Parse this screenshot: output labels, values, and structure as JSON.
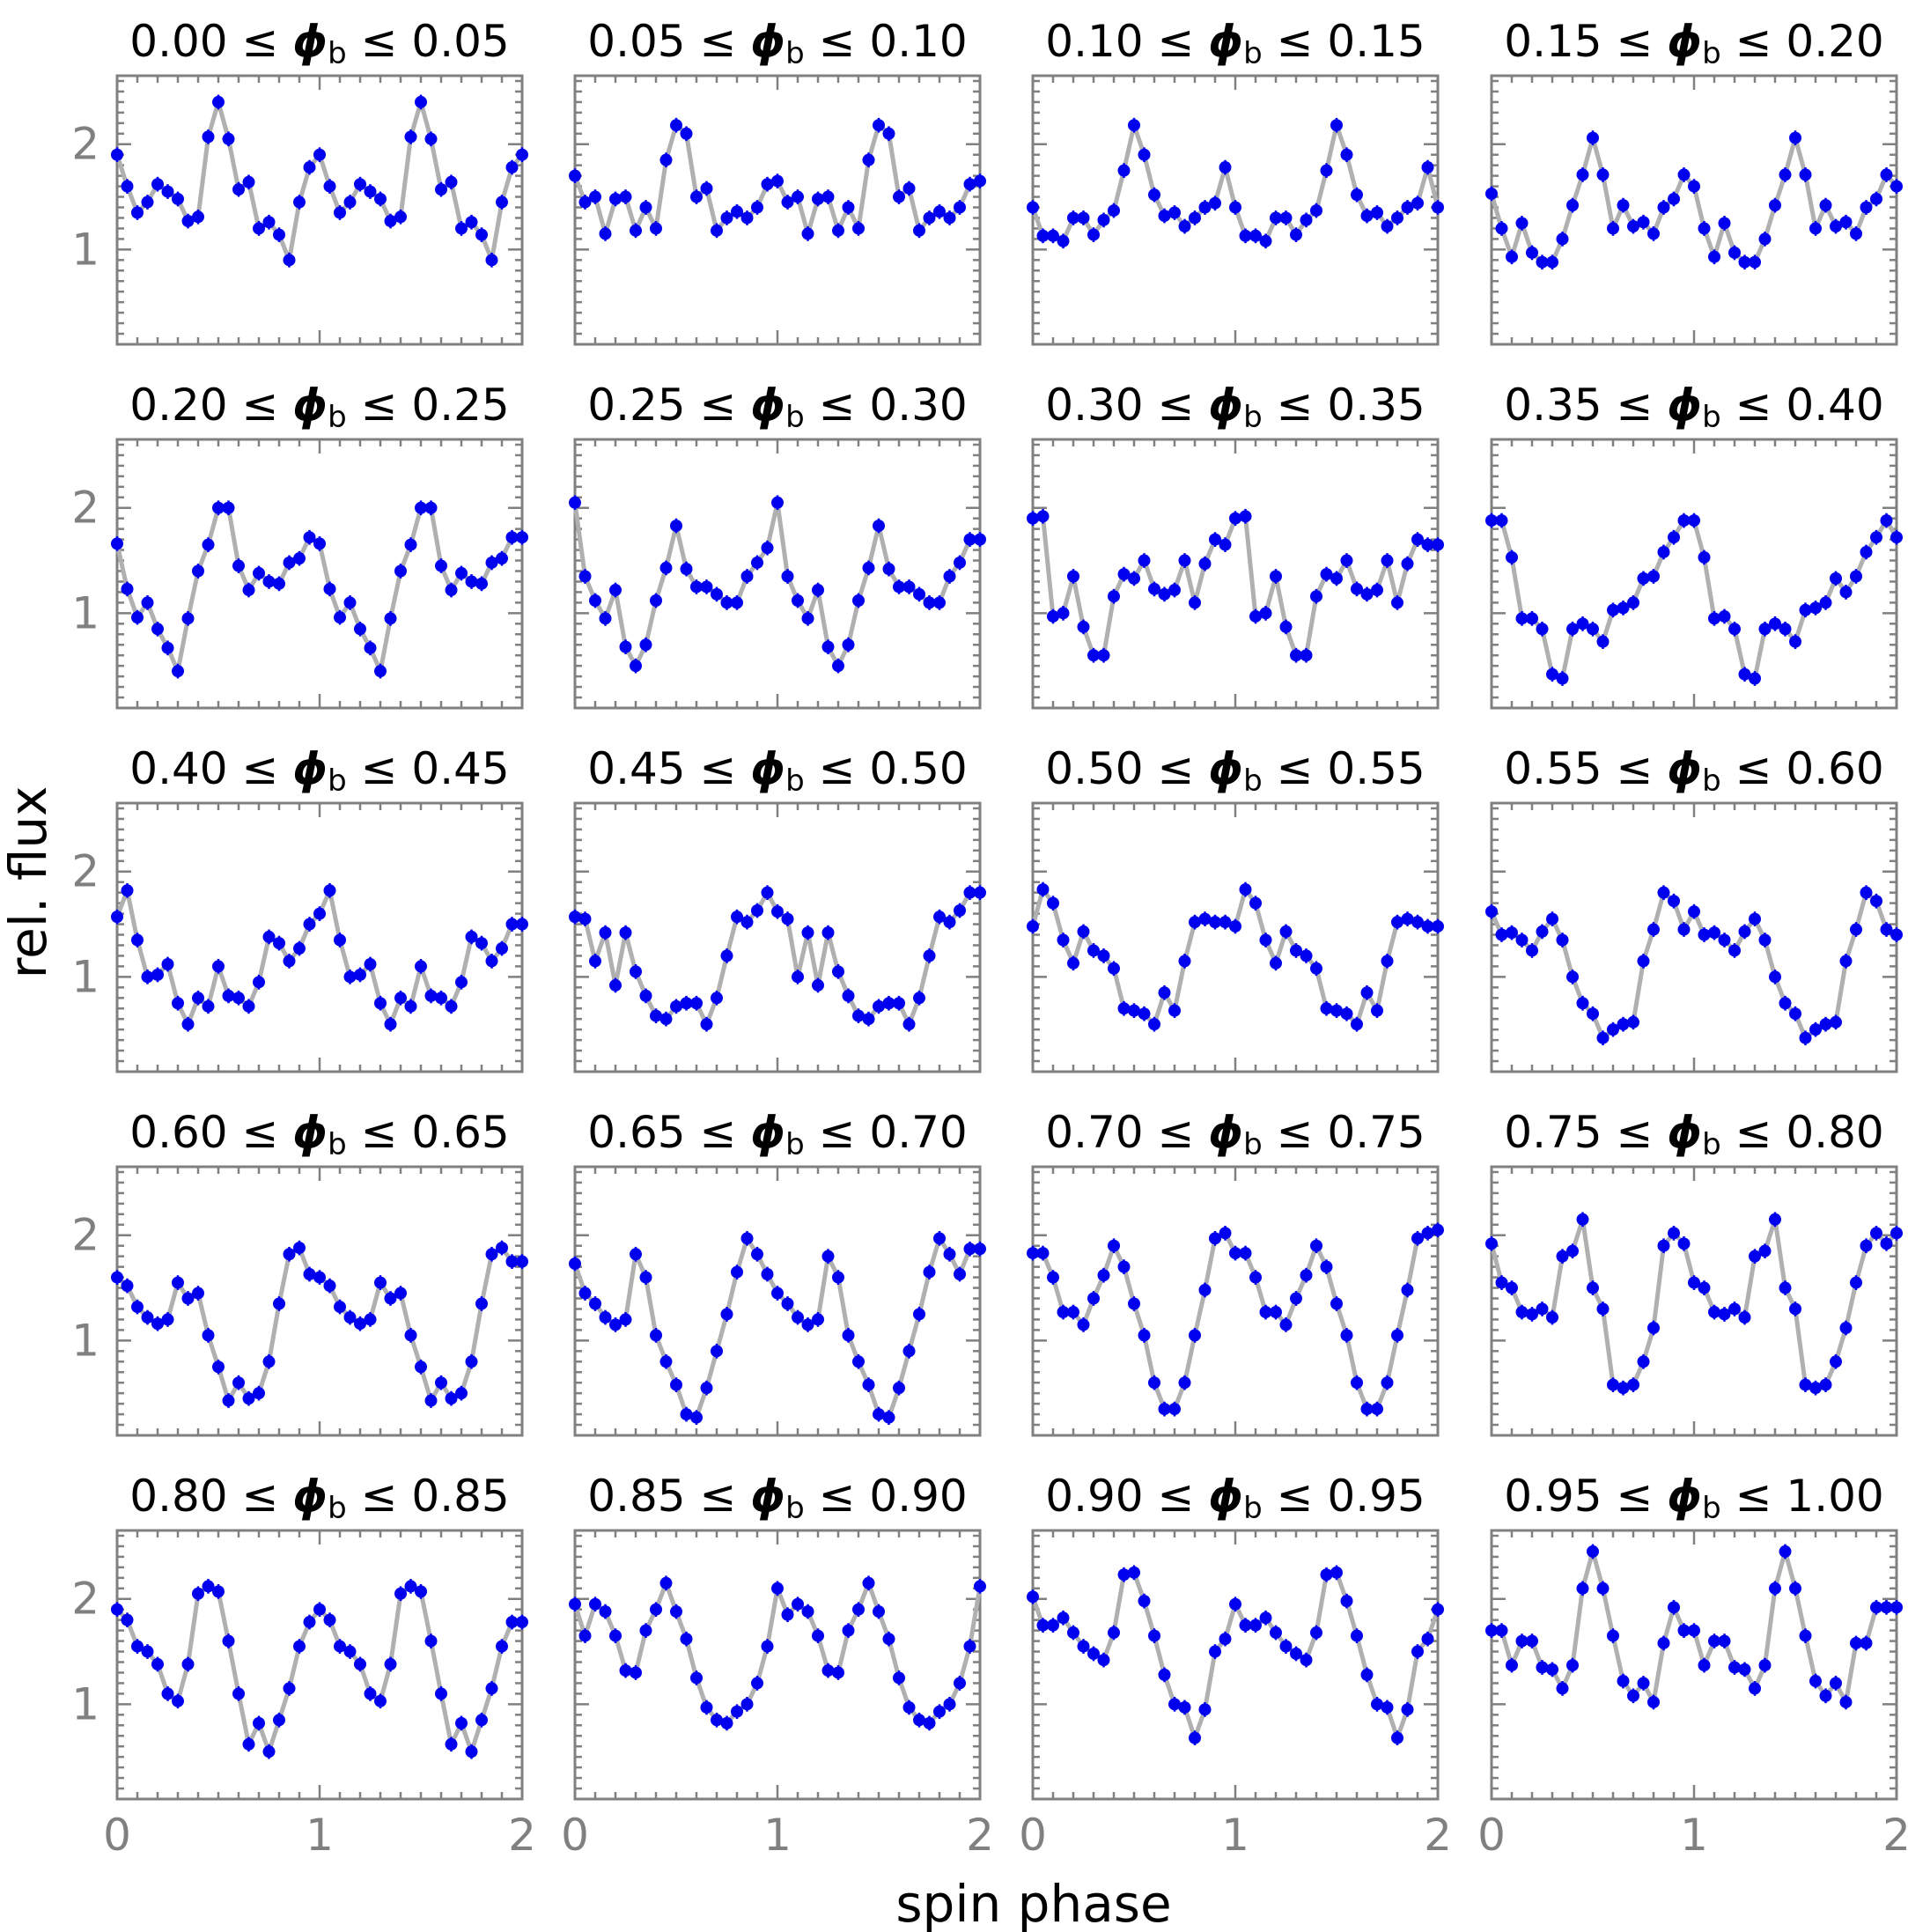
{
  "figure": {
    "xlabel": "spin phase",
    "ylabel": "rel. flux"
  },
  "style": {
    "point_color": "#0000ee",
    "line_color": "#b0b0b0",
    "axis_color": "#808080"
  },
  "chart_data": {
    "type": "line",
    "layout": "5x4 grid of panels",
    "x_ticks": [
      0,
      1,
      2
    ],
    "y_ticks": [
      1,
      2
    ],
    "xlim": [
      0,
      2
    ],
    "ylim": [
      0.1,
      2.65
    ],
    "x": [
      0.0,
      0.05,
      0.1,
      0.15,
      0.2,
      0.25,
      0.3,
      0.35,
      0.4,
      0.45,
      0.5,
      0.55,
      0.6,
      0.65,
      0.7,
      0.75,
      0.8,
      0.85,
      0.9,
      0.95,
      1.0,
      1.05,
      1.1,
      1.15,
      1.2,
      1.25,
      1.3,
      1.35,
      1.4,
      1.45,
      1.5,
      1.55,
      1.6,
      1.65,
      1.7,
      1.75,
      1.8,
      1.85,
      1.9,
      1.95,
      2.0
    ],
    "y_error": 0.07,
    "panels": [
      {
        "title": "0.00 ≤ ϕb ≤ 0.05",
        "title_pre": "0.00 ≤ ",
        "title_post": " ≤ 0.05",
        "y": [
          1.9,
          1.6,
          1.35,
          1.45,
          1.62,
          1.55,
          1.48,
          1.27,
          1.31,
          2.07,
          2.4,
          2.05,
          1.57,
          1.64,
          1.2,
          1.26,
          1.14,
          0.9,
          1.45,
          1.78,
          1.9,
          1.6,
          1.35,
          1.45,
          1.62,
          1.55,
          1.48,
          1.27,
          1.31,
          2.07,
          2.4,
          2.05,
          1.57,
          1.64,
          1.2,
          1.26,
          1.14,
          0.9,
          1.45,
          1.78,
          1.9
        ]
      },
      {
        "title": "0.05 ≤ ϕb ≤ 0.10",
        "title_pre": "0.05 ≤ ",
        "title_post": " ≤ 0.10",
        "y": [
          1.7,
          1.45,
          1.5,
          1.15,
          1.48,
          1.5,
          1.18,
          1.4,
          1.2,
          1.85,
          2.18,
          2.1,
          1.5,
          1.58,
          1.18,
          1.3,
          1.36,
          1.3,
          1.4,
          1.62,
          1.65,
          1.45,
          1.5,
          1.15,
          1.48,
          1.5,
          1.18,
          1.4,
          1.2,
          1.85,
          2.18,
          2.1,
          1.5,
          1.58,
          1.18,
          1.3,
          1.36,
          1.3,
          1.4,
          1.62,
          1.65
        ]
      },
      {
        "title": "0.10 ≤ ϕb ≤ 0.15",
        "title_pre": "0.10 ≤ ",
        "title_post": " ≤ 0.15",
        "y": [
          1.4,
          1.13,
          1.13,
          1.08,
          1.3,
          1.3,
          1.14,
          1.28,
          1.37,
          1.75,
          2.18,
          1.9,
          1.52,
          1.32,
          1.35,
          1.22,
          1.3,
          1.4,
          1.44,
          1.78,
          1.4,
          1.13,
          1.13,
          1.08,
          1.3,
          1.3,
          1.14,
          1.28,
          1.37,
          1.75,
          2.18,
          1.9,
          1.52,
          1.32,
          1.35,
          1.22,
          1.3,
          1.4,
          1.44,
          1.78,
          1.4
        ]
      },
      {
        "title": "0.15 ≤ ϕb ≤ 0.20",
        "title_pre": "0.15 ≤ ",
        "title_post": " ≤ 0.20",
        "y": [
          1.53,
          1.2,
          0.93,
          1.25,
          0.97,
          0.88,
          0.88,
          1.1,
          1.42,
          1.71,
          2.06,
          1.71,
          1.2,
          1.42,
          1.22,
          1.26,
          1.15,
          1.4,
          1.48,
          1.71,
          1.6,
          1.2,
          0.93,
          1.25,
          0.97,
          0.88,
          0.88,
          1.1,
          1.42,
          1.71,
          2.06,
          1.71,
          1.2,
          1.42,
          1.22,
          1.26,
          1.15,
          1.4,
          1.48,
          1.71,
          1.6
        ]
      },
      {
        "title": "0.20 ≤ ϕb ≤ 0.25",
        "title_pre": "0.20 ≤ ",
        "title_post": " ≤ 0.25",
        "y": [
          1.66,
          1.23,
          0.96,
          1.1,
          0.85,
          0.67,
          0.45,
          0.95,
          1.4,
          1.65,
          2.0,
          2.0,
          1.45,
          1.22,
          1.38,
          1.3,
          1.28,
          1.48,
          1.52,
          1.72,
          1.66,
          1.23,
          0.96,
          1.1,
          0.85,
          0.67,
          0.45,
          0.95,
          1.4,
          1.65,
          2.0,
          2.0,
          1.45,
          1.22,
          1.38,
          1.3,
          1.28,
          1.48,
          1.52,
          1.72,
          1.72
        ]
      },
      {
        "title": "0.25 ≤ ϕb ≤ 0.30",
        "title_pre": "0.25 ≤ ",
        "title_post": " ≤ 0.30",
        "y": [
          2.05,
          1.35,
          1.12,
          0.95,
          1.22,
          0.68,
          0.5,
          0.7,
          1.12,
          1.43,
          1.83,
          1.42,
          1.25,
          1.25,
          1.18,
          1.1,
          1.1,
          1.35,
          1.48,
          1.62,
          2.05,
          1.35,
          1.12,
          0.95,
          1.22,
          0.68,
          0.5,
          0.7,
          1.12,
          1.43,
          1.83,
          1.42,
          1.25,
          1.25,
          1.18,
          1.1,
          1.1,
          1.35,
          1.48,
          1.7,
          1.7
        ]
      },
      {
        "title": "0.30 ≤ ϕb ≤ 0.35",
        "title_pre": "0.30 ≤ ",
        "title_post": " ≤ 0.35",
        "y": [
          1.9,
          1.92,
          0.97,
          1.0,
          1.35,
          0.87,
          0.6,
          0.6,
          1.16,
          1.37,
          1.33,
          1.5,
          1.23,
          1.18,
          1.22,
          1.5,
          1.1,
          1.47,
          1.7,
          1.65,
          1.9,
          1.92,
          0.97,
          1.0,
          1.35,
          0.87,
          0.6,
          0.6,
          1.16,
          1.37,
          1.33,
          1.5,
          1.23,
          1.18,
          1.22,
          1.5,
          1.1,
          1.47,
          1.7,
          1.65,
          1.65
        ]
      },
      {
        "title": "0.35 ≤ ϕb ≤ 0.40",
        "title_pre": "0.35 ≤ ",
        "title_post": " ≤ 0.40",
        "y": [
          1.88,
          1.88,
          1.53,
          0.95,
          0.95,
          0.85,
          0.42,
          0.38,
          0.85,
          0.9,
          0.85,
          0.73,
          1.03,
          1.05,
          1.1,
          1.33,
          1.35,
          1.58,
          1.72,
          1.88,
          1.88,
          1.53,
          0.95,
          0.97,
          0.85,
          0.42,
          0.38,
          0.85,
          0.9,
          0.85,
          0.73,
          1.03,
          1.05,
          1.1,
          1.33,
          1.2,
          1.35,
          1.58,
          1.72,
          1.88,
          1.72
        ]
      },
      {
        "title": "0.40 ≤ ϕb ≤ 0.45",
        "title_pre": "0.40 ≤ ",
        "title_post": " ≤ 0.45",
        "y": [
          1.57,
          1.82,
          1.35,
          1.0,
          1.02,
          1.12,
          0.75,
          0.55,
          0.8,
          0.72,
          1.1,
          0.82,
          0.8,
          0.72,
          0.95,
          1.38,
          1.32,
          1.15,
          1.27,
          1.5,
          1.6,
          1.82,
          1.35,
          1.0,
          1.02,
          1.12,
          0.75,
          0.55,
          0.8,
          0.72,
          1.1,
          0.82,
          0.8,
          0.72,
          0.95,
          1.38,
          1.32,
          1.15,
          1.27,
          1.5,
          1.5
        ]
      },
      {
        "title": "0.45 ≤ ϕb ≤ 0.50",
        "title_pre": "0.45 ≤ ",
        "title_post": " ≤ 0.50",
        "y": [
          1.57,
          1.55,
          1.15,
          1.42,
          0.92,
          1.42,
          1.05,
          0.82,
          0.63,
          0.6,
          0.72,
          0.75,
          0.75,
          0.55,
          0.8,
          1.2,
          1.57,
          1.52,
          1.63,
          1.8,
          1.62,
          1.55,
          1.0,
          1.42,
          0.92,
          1.42,
          1.05,
          0.82,
          0.63,
          0.6,
          0.72,
          0.75,
          0.75,
          0.55,
          0.8,
          1.2,
          1.57,
          1.52,
          1.63,
          1.8,
          1.8
        ]
      },
      {
        "title": "0.50 ≤ ϕb ≤ 0.55",
        "title_pre": "0.50 ≤ ",
        "title_post": " ≤ 0.55",
        "y": [
          1.48,
          1.83,
          1.7,
          1.35,
          1.13,
          1.43,
          1.25,
          1.2,
          1.08,
          0.7,
          0.68,
          0.65,
          0.55,
          0.85,
          0.68,
          1.15,
          1.52,
          1.55,
          1.52,
          1.52,
          1.48,
          1.83,
          1.7,
          1.35,
          1.13,
          1.43,
          1.25,
          1.2,
          1.08,
          0.7,
          0.68,
          0.65,
          0.55,
          0.85,
          0.68,
          1.15,
          1.52,
          1.55,
          1.52,
          1.48,
          1.48
        ]
      },
      {
        "title": "0.55 ≤ ϕb ≤ 0.60",
        "title_pre": "0.55 ≤ ",
        "title_post": " ≤ 0.60",
        "y": [
          1.62,
          1.4,
          1.42,
          1.35,
          1.25,
          1.43,
          1.55,
          1.35,
          1.0,
          0.75,
          0.65,
          0.42,
          0.5,
          0.55,
          0.57,
          1.15,
          1.45,
          1.8,
          1.72,
          1.45,
          1.62,
          1.4,
          1.42,
          1.35,
          1.25,
          1.43,
          1.55,
          1.35,
          1.0,
          0.75,
          0.65,
          0.42,
          0.5,
          0.55,
          0.57,
          1.15,
          1.45,
          1.8,
          1.72,
          1.45,
          1.4
        ]
      },
      {
        "title": "0.60 ≤ ϕb ≤ 0.65",
        "title_pre": "0.60 ≤ ",
        "title_post": " ≤ 0.65",
        "y": [
          1.6,
          1.52,
          1.32,
          1.22,
          1.16,
          1.2,
          1.55,
          1.4,
          1.45,
          1.05,
          0.75,
          0.43,
          0.6,
          0.45,
          0.5,
          0.8,
          1.35,
          1.82,
          1.88,
          1.63,
          1.6,
          1.52,
          1.32,
          1.22,
          1.16,
          1.2,
          1.55,
          1.4,
          1.45,
          1.05,
          0.75,
          0.43,
          0.6,
          0.45,
          0.5,
          0.8,
          1.35,
          1.82,
          1.88,
          1.75,
          1.75
        ]
      },
      {
        "title": "0.65 ≤ ϕb ≤ 0.70",
        "title_pre": "0.65 ≤ ",
        "title_post": " ≤ 0.70",
        "y": [
          1.73,
          1.45,
          1.35,
          1.22,
          1.15,
          1.2,
          1.82,
          1.6,
          1.05,
          0.8,
          0.58,
          0.3,
          0.27,
          0.55,
          0.9,
          1.25,
          1.65,
          1.97,
          1.82,
          1.63,
          1.45,
          1.35,
          1.22,
          1.15,
          1.2,
          1.8,
          1.6,
          1.05,
          0.8,
          0.58,
          0.3,
          0.27,
          0.55,
          0.9,
          1.25,
          1.65,
          1.97,
          1.82,
          1.63,
          1.87,
          1.87
        ]
      },
      {
        "title": "0.70 ≤ ϕb ≤ 0.75",
        "title_pre": "0.70 ≤ ",
        "title_post": " ≤ 0.75",
        "y": [
          1.83,
          1.83,
          1.6,
          1.27,
          1.27,
          1.15,
          1.4,
          1.62,
          1.9,
          1.7,
          1.35,
          1.05,
          0.6,
          0.35,
          0.35,
          0.6,
          1.05,
          1.48,
          1.97,
          2.02,
          1.83,
          1.83,
          1.6,
          1.27,
          1.27,
          1.15,
          1.4,
          1.62,
          1.9,
          1.7,
          1.35,
          1.05,
          0.6,
          0.35,
          0.35,
          0.6,
          1.05,
          1.48,
          1.97,
          2.02,
          2.05
        ]
      },
      {
        "title": "0.75 ≤ ϕb ≤ 0.80",
        "title_pre": "0.75 ≤ ",
        "title_post": " ≤ 0.80",
        "y": [
          1.92,
          1.55,
          1.5,
          1.27,
          1.25,
          1.3,
          1.22,
          1.8,
          1.85,
          2.15,
          1.5,
          1.3,
          0.58,
          0.55,
          0.58,
          0.8,
          1.12,
          1.9,
          2.02,
          1.92,
          1.55,
          1.5,
          1.27,
          1.25,
          1.3,
          1.22,
          1.8,
          1.85,
          2.15,
          1.5,
          1.3,
          0.58,
          0.55,
          0.58,
          0.8,
          1.12,
          1.55,
          1.9,
          2.02,
          1.92,
          2.02
        ]
      },
      {
        "title": "0.80 ≤ ϕb ≤ 0.85",
        "title_pre": "0.80 ≤ ",
        "title_post": " ≤ 0.85",
        "y": [
          1.9,
          1.8,
          1.55,
          1.5,
          1.38,
          1.1,
          1.03,
          1.38,
          2.05,
          2.12,
          2.07,
          1.6,
          1.1,
          0.62,
          0.82,
          0.55,
          0.85,
          1.15,
          1.55,
          1.78,
          1.9,
          1.8,
          1.55,
          1.5,
          1.38,
          1.1,
          1.03,
          1.38,
          2.05,
          2.12,
          2.07,
          1.6,
          1.1,
          0.62,
          0.82,
          0.55,
          0.85,
          1.15,
          1.55,
          1.78,
          1.78
        ]
      },
      {
        "title": "0.85 ≤ ϕb ≤ 0.90",
        "title_pre": "0.85 ≤ ",
        "title_post": " ≤ 0.90",
        "y": [
          1.95,
          1.65,
          1.95,
          1.88,
          1.65,
          1.32,
          1.3,
          1.7,
          1.9,
          2.15,
          1.88,
          1.62,
          1.25,
          0.97,
          0.85,
          0.82,
          0.93,
          1.0,
          1.2,
          1.55,
          2.1,
          1.85,
          1.95,
          1.88,
          1.65,
          1.32,
          1.3,
          1.7,
          1.9,
          2.15,
          1.88,
          1.62,
          1.25,
          0.97,
          0.85,
          0.82,
          0.93,
          1.0,
          1.2,
          1.55,
          2.12
        ]
      },
      {
        "title": "0.90 ≤ ϕb ≤ 0.95",
        "title_pre": "0.90 ≤ ",
        "title_post": " ≤ 0.95",
        "y": [
          2.02,
          1.75,
          1.75,
          1.82,
          1.68,
          1.55,
          1.48,
          1.42,
          1.68,
          2.23,
          2.25,
          1.98,
          1.65,
          1.28,
          1.0,
          0.97,
          0.68,
          0.95,
          1.5,
          1.62,
          1.95,
          1.75,
          1.75,
          1.82,
          1.68,
          1.55,
          1.48,
          1.42,
          1.68,
          2.23,
          2.25,
          1.98,
          1.65,
          1.28,
          1.0,
          0.97,
          0.68,
          0.95,
          1.5,
          1.62,
          1.9
        ]
      },
      {
        "title": "0.95 ≤ ϕb ≤ 1.00",
        "title_pre": "0.95 ≤ ",
        "title_post": " ≤ 1.00",
        "y": [
          1.7,
          1.7,
          1.37,
          1.6,
          1.6,
          1.35,
          1.33,
          1.15,
          1.37,
          2.1,
          2.45,
          2.1,
          1.65,
          1.22,
          1.08,
          1.2,
          1.02,
          1.58,
          1.92,
          1.7,
          1.7,
          1.37,
          1.6,
          1.6,
          1.35,
          1.33,
          1.15,
          1.37,
          2.1,
          2.45,
          2.1,
          1.65,
          1.22,
          1.08,
          1.2,
          1.02,
          1.58,
          1.58,
          1.92,
          1.92,
          1.92
        ]
      }
    ]
  }
}
